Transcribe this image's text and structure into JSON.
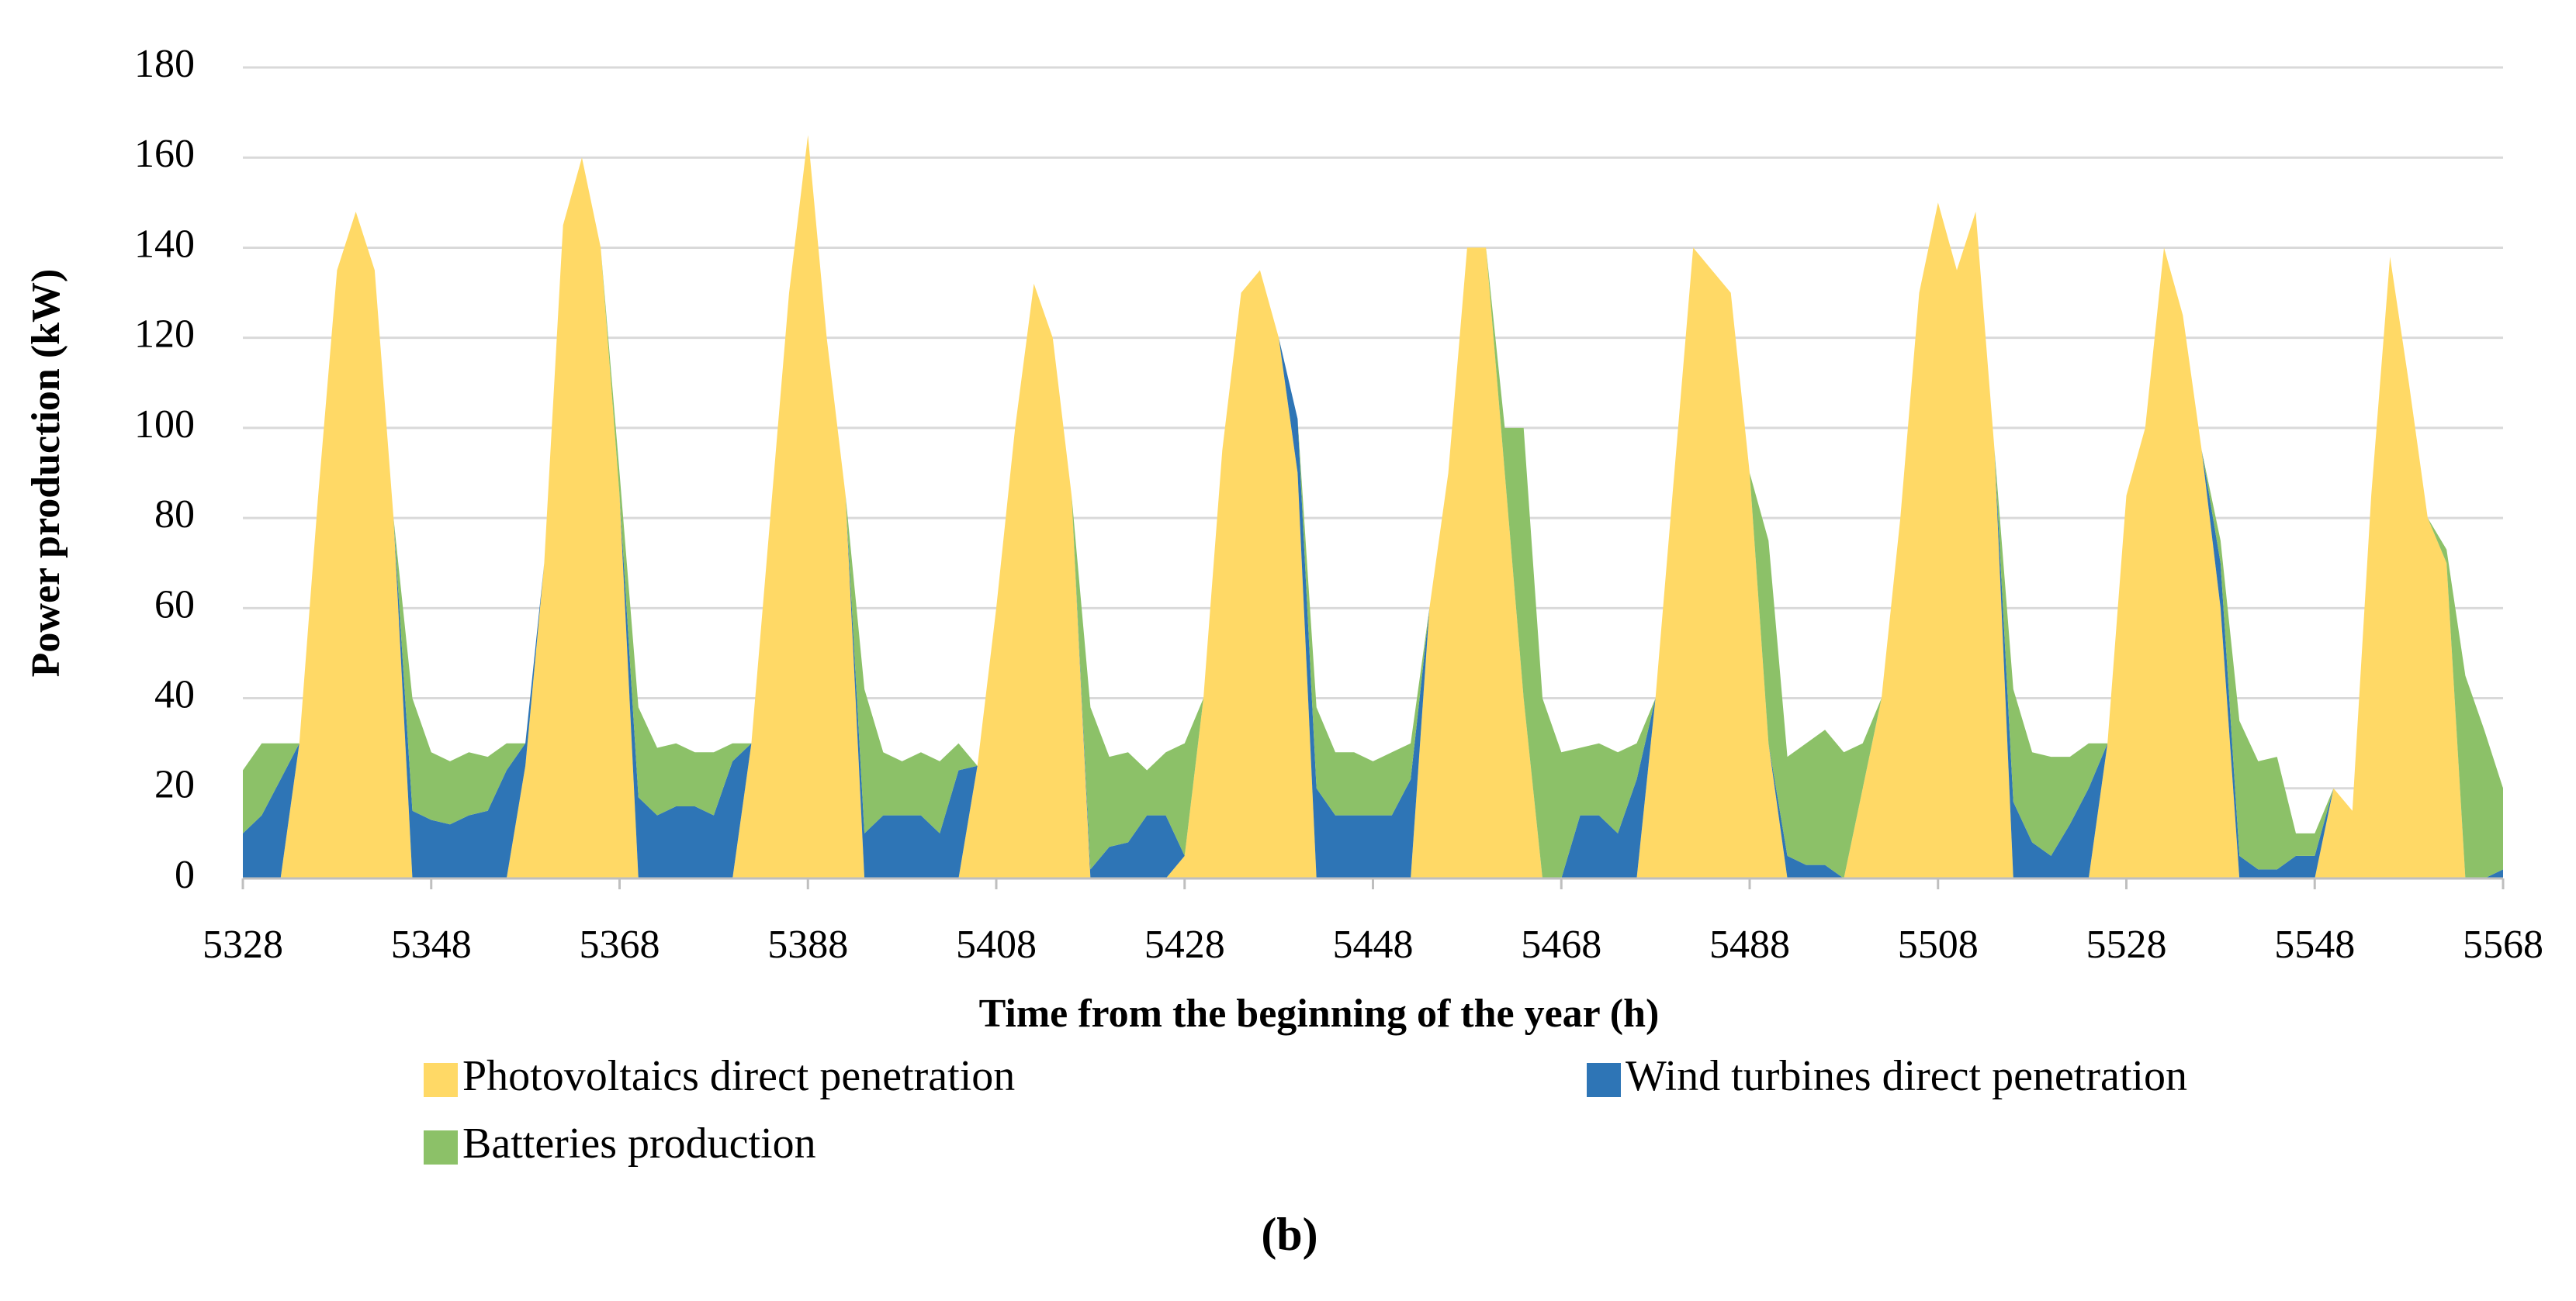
{
  "chart_data": {
    "type": "stacked_area",
    "caption": "(b)",
    "x_label": "Time from the beginning of the year (h)",
    "y_label": "Power production (kW)",
    "x": [
      5328,
      5330,
      5332,
      5334,
      5336,
      5338,
      5340,
      5342,
      5344,
      5346,
      5348,
      5350,
      5352,
      5354,
      5356,
      5358,
      5360,
      5362,
      5364,
      5366,
      5368,
      5370,
      5372,
      5374,
      5376,
      5378,
      5380,
      5382,
      5384,
      5386,
      5388,
      5390,
      5392,
      5394,
      5396,
      5398,
      5400,
      5402,
      5404,
      5406,
      5408,
      5410,
      5412,
      5414,
      5416,
      5418,
      5420,
      5422,
      5424,
      5426,
      5428,
      5430,
      5432,
      5434,
      5436,
      5438,
      5440,
      5442,
      5444,
      5446,
      5448,
      5450,
      5452,
      5454,
      5456,
      5458,
      5460,
      5462,
      5464,
      5466,
      5468,
      5470,
      5472,
      5474,
      5476,
      5478,
      5480,
      5482,
      5484,
      5486,
      5488,
      5490,
      5492,
      5494,
      5496,
      5498,
      5500,
      5502,
      5504,
      5506,
      5508,
      5510,
      5512,
      5514,
      5516,
      5518,
      5520,
      5522,
      5524,
      5526,
      5528,
      5530,
      5532,
      5534,
      5536,
      5538,
      5540,
      5542,
      5544,
      5546,
      5548,
      5550,
      5552,
      5554,
      5556,
      5558,
      5560,
      5562,
      5564,
      5566,
      5568
    ],
    "series": [
      {
        "name": "Photovoltaics direct penetration",
        "color": "#FFD966",
        "values": [
          0,
          0,
          0,
          30,
          85,
          135,
          148,
          135,
          80,
          0,
          0,
          0,
          0,
          0,
          0,
          25,
          70,
          145,
          160,
          140,
          85,
          0,
          0,
          0,
          0,
          0,
          0,
          30,
          80,
          130,
          165,
          120,
          85,
          0,
          0,
          0,
          0,
          0,
          0,
          25,
          60,
          100,
          132,
          120,
          85,
          0,
          0,
          0,
          0,
          0,
          5,
          40,
          95,
          130,
          135,
          120,
          90,
          0,
          0,
          0,
          0,
          0,
          0,
          60,
          90,
          140,
          140,
          90,
          40,
          0,
          0,
          0,
          0,
          0,
          0,
          40,
          90,
          140,
          135,
          130,
          90,
          30,
          0,
          0,
          0,
          0,
          20,
          40,
          80,
          130,
          150,
          135,
          148,
          95,
          0,
          0,
          0,
          0,
          0,
          30,
          85,
          100,
          140,
          125,
          95,
          60,
          0,
          0,
          0,
          0,
          0,
          20,
          15,
          85,
          138,
          110,
          80,
          70,
          0,
          0,
          0
        ]
      },
      {
        "name": "Wind turbines direct penetration",
        "color": "#2E75B6",
        "values": [
          10,
          14,
          22,
          0,
          0,
          0,
          0,
          0,
          0,
          15,
          13,
          12,
          14,
          15,
          24,
          5,
          0,
          0,
          0,
          0,
          0,
          18,
          14,
          16,
          16,
          14,
          26,
          0,
          0,
          0,
          0,
          0,
          0,
          10,
          14,
          14,
          14,
          10,
          24,
          0,
          0,
          0,
          0,
          0,
          0,
          2,
          7,
          8,
          14,
          14,
          0,
          0,
          0,
          0,
          0,
          0,
          12,
          20,
          14,
          14,
          14,
          14,
          22,
          0,
          0,
          0,
          0,
          0,
          0,
          0,
          0,
          14,
          14,
          10,
          22,
          0,
          0,
          0,
          0,
          0,
          0,
          0,
          5,
          3,
          3,
          0,
          0,
          0,
          0,
          0,
          0,
          0,
          0,
          0,
          17,
          8,
          5,
          12,
          20,
          0,
          0,
          0,
          0,
          0,
          0,
          10,
          5,
          2,
          2,
          5,
          5,
          0,
          0,
          0,
          0,
          0,
          0,
          0,
          0,
          0,
          2
        ]
      },
      {
        "name": "Batteries production",
        "color": "#8CC168",
        "values": [
          14,
          16,
          8,
          0,
          0,
          0,
          0,
          0,
          0,
          25,
          15,
          14,
          14,
          12,
          6,
          0,
          0,
          0,
          0,
          0,
          5,
          20,
          15,
          14,
          12,
          14,
          4,
          0,
          0,
          0,
          0,
          0,
          0,
          32,
          14,
          12,
          14,
          16,
          6,
          0,
          0,
          0,
          0,
          0,
          0,
          36,
          20,
          20,
          10,
          14,
          25,
          0,
          0,
          0,
          0,
          0,
          0,
          18,
          14,
          14,
          12,
          14,
          8,
          0,
          0,
          0,
          0,
          10,
          60,
          40,
          28,
          15,
          16,
          18,
          8,
          0,
          0,
          0,
          0,
          0,
          0,
          45,
          22,
          27,
          30,
          28,
          10,
          0,
          0,
          0,
          0,
          0,
          0,
          0,
          25,
          20,
          22,
          15,
          10,
          0,
          0,
          0,
          0,
          0,
          0,
          5,
          30,
          24,
          25,
          5,
          5,
          0,
          0,
          0,
          0,
          0,
          0,
          3,
          45,
          33,
          18
        ]
      }
    ],
    "xlim": [
      5328,
      5568
    ],
    "xticks": [
      5328,
      5348,
      5368,
      5388,
      5408,
      5428,
      5448,
      5468,
      5488,
      5508,
      5528,
      5548,
      5568
    ],
    "ylim": [
      0,
      180
    ],
    "yticks": [
      0,
      20,
      40,
      60,
      80,
      100,
      120,
      140,
      160,
      180
    ],
    "grid": true
  }
}
